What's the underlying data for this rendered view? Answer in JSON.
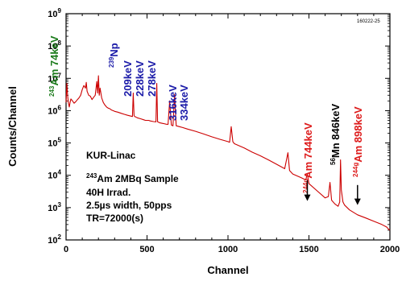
{
  "chart_data": {
    "type": "line",
    "xlabel": "Channel",
    "ylabel": "Counts/Channel",
    "xlim": [
      0,
      2000
    ],
    "ylim": [
      100,
      1000000000
    ],
    "yscale": "log",
    "x_ticks": [
      {
        "v": 0,
        "label": "0"
      },
      {
        "v": 500,
        "label": "500"
      },
      {
        "v": 1000,
        "label": "1000"
      },
      {
        "v": 1500,
        "label": "1500"
      },
      {
        "v": 2000,
        "label": "2000"
      }
    ],
    "y_ticks": [
      {
        "v": 100,
        "base": "10",
        "exp": "2"
      },
      {
        "v": 1000,
        "base": "10",
        "exp": "3"
      },
      {
        "v": 10000,
        "base": "10",
        "exp": "4"
      },
      {
        "v": 100000,
        "base": "10",
        "exp": "5"
      },
      {
        "v": 1000000,
        "base": "10",
        "exp": "6"
      },
      {
        "v": 10000000,
        "base": "10",
        "exp": "7"
      },
      {
        "v": 100000000,
        "base": "10",
        "exp": "8"
      },
      {
        "v": 1000000000,
        "base": "10",
        "exp": "9"
      }
    ],
    "figure_id": "160222-25",
    "series_color": "#cc0000",
    "spectrum": {
      "x": [
        0,
        5,
        10,
        15,
        20,
        25,
        30,
        40,
        50,
        60,
        70,
        80,
        90,
        100,
        110,
        120,
        125,
        130,
        140,
        150,
        160,
        170,
        180,
        190,
        195,
        200,
        205,
        210,
        220,
        230,
        240,
        250,
        260,
        270,
        280,
        290,
        300,
        320,
        340,
        360,
        380,
        400,
        410,
        415,
        420,
        425,
        430,
        440,
        460,
        480,
        490,
        495,
        500,
        510,
        520,
        540,
        555,
        560,
        565,
        580,
        600,
        620,
        630,
        640,
        650,
        660,
        670,
        680,
        700,
        720,
        750,
        800,
        850,
        900,
        950,
        1000,
        1010,
        1020,
        1030,
        1040,
        1100,
        1150,
        1200,
        1250,
        1300,
        1350,
        1370,
        1380,
        1400,
        1450,
        1480,
        1490,
        1500,
        1550,
        1600,
        1620,
        1630,
        1640,
        1660,
        1680,
        1690,
        1695,
        1700,
        1710,
        1720,
        1750,
        1800,
        1850,
        1900,
        1950,
        1980,
        1990,
        2000
      ],
      "y": [
        1800000,
        7000000,
        2800000,
        1700000,
        1300000,
        1800000,
        2300000,
        2000000,
        1700000,
        1900000,
        2200000,
        2500000,
        3000000,
        4500000,
        6000000,
        5000000,
        7500000,
        4000000,
        3000000,
        2800000,
        2200000,
        2600000,
        3000000,
        8000000,
        3500000,
        12000000,
        3000000,
        5000000,
        2500000,
        1800000,
        1500000,
        1300000,
        1200000,
        1150000,
        1050000,
        1000000,
        950000,
        900000,
        830000,
        770000,
        720000,
        680000,
        660000,
        3500000,
        700000,
        650000,
        640000,
        600000,
        560000,
        520000,
        500000,
        500000,
        500000,
        500000,
        480000,
        460000,
        450000,
        7000000,
        450000,
        420000,
        400000,
        380000,
        375000,
        2000000,
        360000,
        340000,
        3200000,
        340000,
        320000,
        300000,
        270000,
        230000,
        190000,
        155000,
        130000,
        110000,
        105000,
        320000,
        110000,
        95000,
        70000,
        52000,
        40000,
        30000,
        22000,
        16000,
        50000,
        14000,
        11000,
        8500,
        7200,
        11000,
        5500,
        3300,
        2000,
        2200,
        6000,
        1700,
        1300,
        1100,
        1500,
        30000,
        3500,
        1500,
        1200,
        850,
        600,
        480,
        380,
        300,
        250,
        220,
        200
      ]
    },
    "annotations": [
      {
        "id": "am243",
        "sup": "243",
        "text": "Am 74keV",
        "color": "#1a7a1a"
      },
      {
        "id": "np239",
        "sup": "239",
        "text": "Np",
        "color": "#1a1aa8"
      },
      {
        "id": "e209",
        "text": "209keV",
        "color": "#1a1aa8"
      },
      {
        "id": "e228",
        "text": "228keV",
        "color": "#1a1aa8"
      },
      {
        "id": "e278",
        "text": "278keV",
        "color": "#1a1aa8"
      },
      {
        "id": "e316",
        "text": "316keV",
        "color": "#1a1aa8"
      },
      {
        "id": "e334",
        "text": "334keV",
        "color": "#1a1aa8"
      },
      {
        "id": "am744",
        "sup": "244g",
        "text": "Am 744keV",
        "color": "#dd1a1a"
      },
      {
        "id": "mn846",
        "sup": "56",
        "text": "Mn 846keV",
        "color": "#000000"
      },
      {
        "id": "am898",
        "sup": "244g",
        "text": "Am 898keV",
        "color": "#dd1a1a"
      }
    ],
    "arrows": [
      {
        "id": "arrow-744",
        "x": 1490,
        "from": 7000,
        "to": 1600
      },
      {
        "id": "arrow-898",
        "x": 1800,
        "from": 5000,
        "to": 1200
      }
    ],
    "notes": {
      "line1": "KUR-Linac",
      "line2_sup": "243",
      "line2": "Am    2MBq Sample",
      "line3": "40H Irrad.",
      "line4": "2.5µs width, 50pps",
      "line5": "TR=72000(s)"
    }
  }
}
